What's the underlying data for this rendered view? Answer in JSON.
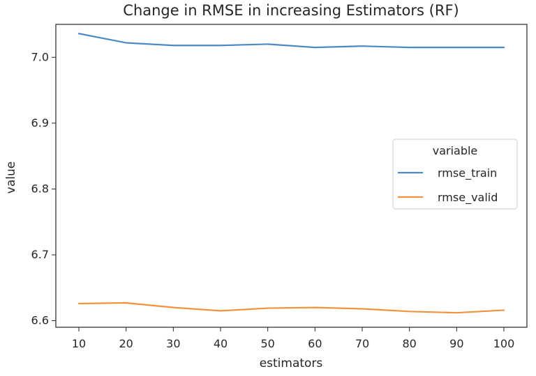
{
  "chart_data": {
    "type": "line",
    "title": "Change in RMSE in increasing Estimators (RF)",
    "xlabel": "estimators",
    "ylabel": "value",
    "x": [
      10,
      20,
      30,
      40,
      50,
      60,
      70,
      80,
      90,
      100
    ],
    "xticks": [
      10,
      20,
      30,
      40,
      50,
      60,
      70,
      80,
      90,
      100
    ],
    "yticks": [
      "6.6",
      "6.7",
      "6.8",
      "6.9",
      "7.0"
    ],
    "ylim": [
      6.59,
      7.05
    ],
    "grid": false,
    "legend": {
      "title": "variable",
      "placement": "center-right"
    },
    "series": [
      {
        "name": "rmse_train",
        "color": "#4c8ac6",
        "values": [
          7.036,
          7.022,
          7.018,
          7.018,
          7.02,
          7.015,
          7.017,
          7.015,
          7.015,
          7.015
        ]
      },
      {
        "name": "rmse_valid",
        "color": "#f4923c",
        "values": [
          6.626,
          6.627,
          6.62,
          6.615,
          6.619,
          6.62,
          6.618,
          6.614,
          6.612,
          6.616
        ]
      }
    ]
  }
}
